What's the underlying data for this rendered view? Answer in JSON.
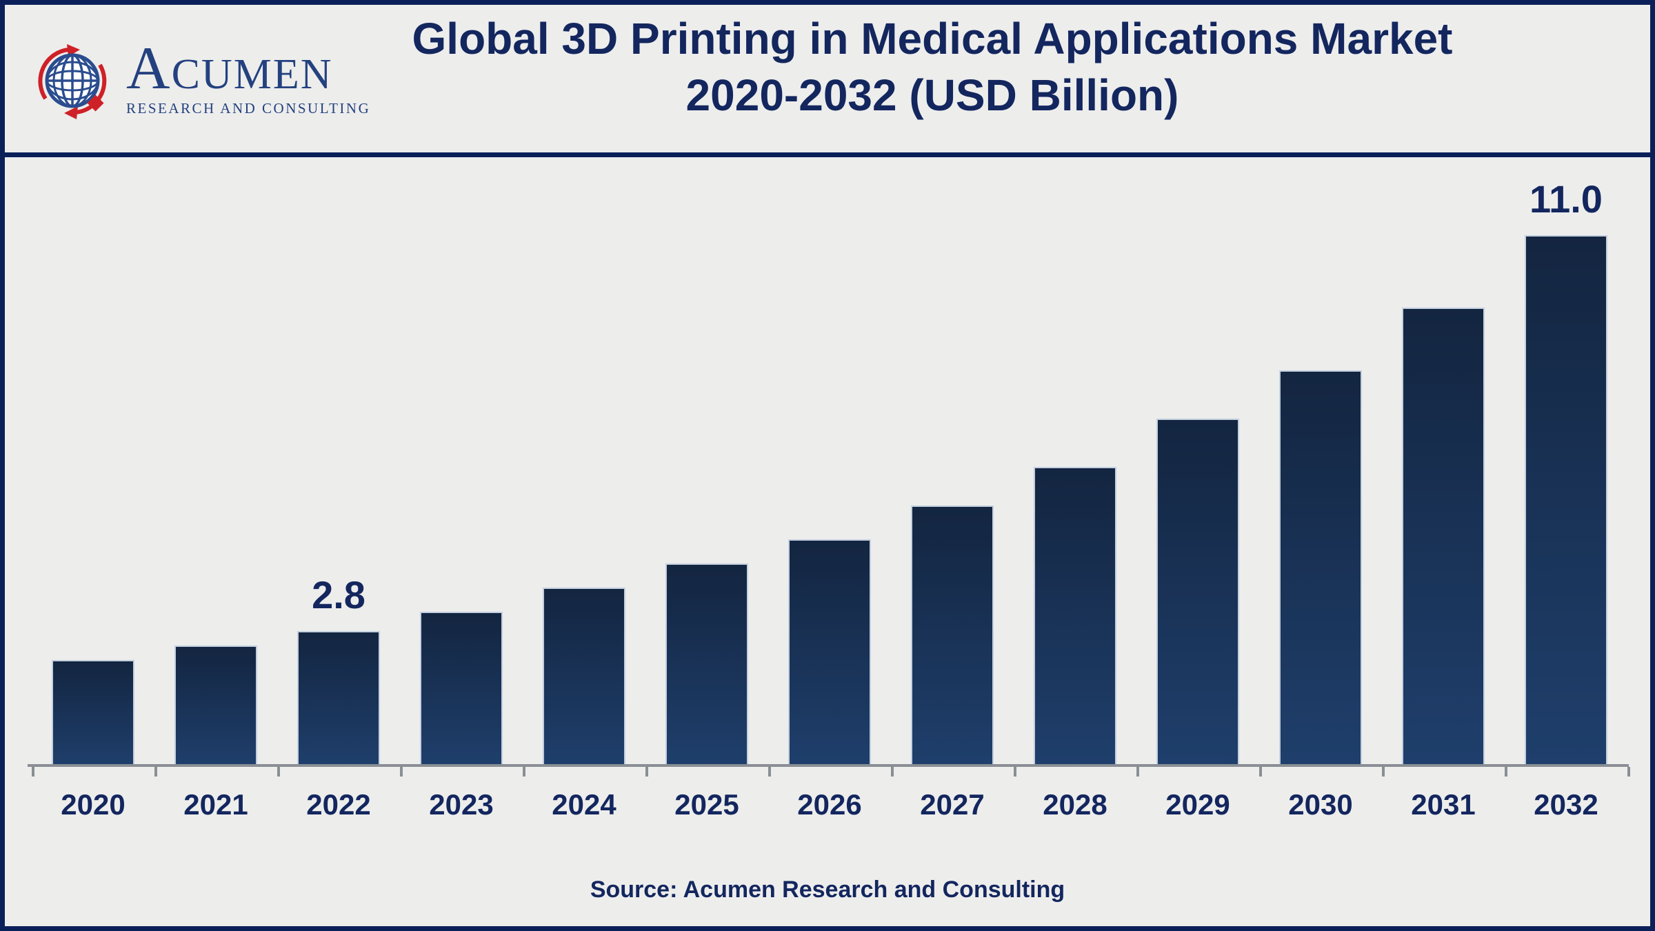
{
  "header": {
    "logo": {
      "wordmark_initial": "A",
      "wordmark_rest": "CUMEN",
      "tagline": "RESEARCH AND CONSULTING"
    },
    "title_line1": "Global 3D Printing in Medical Applications Market",
    "title_line2": "2020-2032 (USD Billion)"
  },
  "footer": {
    "source": "Source: Acumen Research and Consulting"
  },
  "chart_data": {
    "type": "bar",
    "title": "Global 3D Printing in Medical Applications Market 2020-2032 (USD Billion)",
    "unit": "USD Billion",
    "categories": [
      "2020",
      "2021",
      "2022",
      "2023",
      "2024",
      "2025",
      "2026",
      "2027",
      "2028",
      "2029",
      "2030",
      "2031",
      "2032"
    ],
    "values": [
      2.2,
      2.5,
      2.8,
      3.2,
      3.7,
      4.2,
      4.7,
      5.4,
      6.2,
      7.2,
      8.2,
      9.5,
      11.0
    ],
    "point_labels": [
      {
        "category": "2022",
        "text": "2.8"
      },
      {
        "category": "2032",
        "text": "11.0"
      }
    ],
    "ylim": [
      0,
      12
    ],
    "grid": false,
    "legend": "none",
    "y_axis_visible": false,
    "colors": {
      "bar_gradient_top": "#132540",
      "bar_gradient_bottom": "#1F3F6C",
      "bar_edge": "#C3CFDF",
      "axis": "#8A8F94",
      "text_navy": "#13265E",
      "frame_border": "#0B2059",
      "background": "#EDEDEC",
      "logo_blue": "#2B4D8F",
      "logo_red": "#CE2127"
    }
  }
}
